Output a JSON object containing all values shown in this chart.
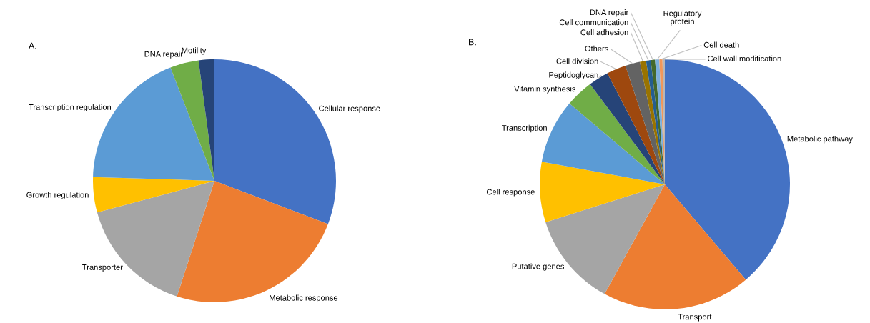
{
  "chart_data": [
    {
      "type": "pie",
      "title": "A.",
      "categories": [
        "Cellular response",
        "Metabolic response",
        "Transporter",
        "Growth regulation",
        "Transcription regulation",
        "DNA repair",
        "Motility"
      ],
      "values": [
        30.8,
        24.2,
        15.8,
        4.7,
        18.6,
        3.8,
        2.1
      ],
      "colors": [
        "#4472c4",
        "#ed7d31",
        "#a5a5a5",
        "#ffc000",
        "#5b9bd5",
        "#70ad47",
        "#264478"
      ]
    },
    {
      "type": "pie",
      "title": "B.",
      "categories": [
        "Metabolic pathway",
        "Transport",
        "Putative genes",
        "Cell response",
        "Transcription",
        "Vitamin synthesis",
        "Peptidoglycan",
        "Cell division",
        "Others",
        "Cell adhesion",
        "Cell communication",
        "DNA repair",
        "Regulatory\nprotein",
        "Cell death",
        "Cell wall modification"
      ],
      "values": [
        38.8,
        19.2,
        12.1,
        7.8,
        8.3,
        3.6,
        2.6,
        2.5,
        1.9,
        0.8,
        0.6,
        0.55,
        0.55,
        0.4,
        0.3
      ],
      "colors": [
        "#4472c4",
        "#ed7d31",
        "#a5a5a5",
        "#ffc000",
        "#5b9bd5",
        "#70ad47",
        "#264478",
        "#9e480e",
        "#636363",
        "#997300",
        "#255e91",
        "#43682b",
        "#7cafdd",
        "#f1975a",
        "#b7b7b7"
      ]
    }
  ]
}
